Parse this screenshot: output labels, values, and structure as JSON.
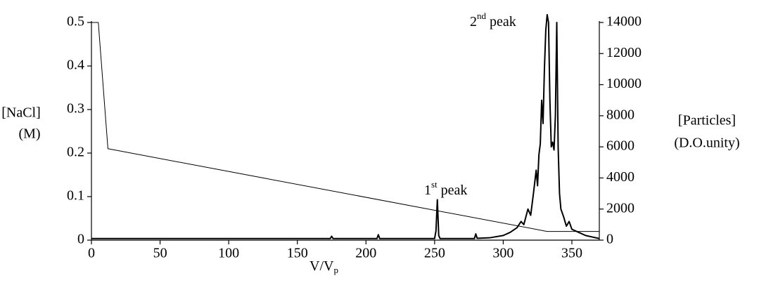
{
  "chart_data": {
    "type": "line",
    "x_label": {
      "main": "V/V",
      "subscript": "p"
    },
    "y_label": [
      "[NaCl]",
      "(M)"
    ],
    "y2_label": [
      "[Particles]",
      "(D.O.unity)"
    ],
    "annotations": [
      {
        "number": "1",
        "superscript": "st",
        "text": "peak"
      },
      {
        "number": "2",
        "superscript": "nd",
        "text": "peak"
      }
    ],
    "xlim": [
      0,
      370
    ],
    "xticks": [
      0,
      50,
      100,
      150,
      200,
      250,
      300,
      350
    ],
    "ylim": [
      0,
      0.5
    ],
    "yticks": [
      0,
      0.1,
      0.2,
      0.3,
      0.4,
      0.5
    ],
    "y2lim": [
      0,
      14000
    ],
    "y2ticks": [
      0,
      2000,
      4000,
      6000,
      8000,
      10000,
      12000,
      14000
    ],
    "series": [
      {
        "name": "[NaCl]",
        "color": "#000000",
        "axis": "y",
        "width": 1,
        "x": [
          0,
          5,
          12,
          332,
          370
        ],
        "values": [
          0.5,
          0.5,
          0.21,
          0.02,
          0.02
        ]
      },
      {
        "name": "[Particles]",
        "color": "#000000",
        "axis": "y2",
        "width": 2,
        "x": [
          0,
          50,
          100,
          150,
          174,
          175,
          176,
          200,
          208,
          209,
          210,
          230,
          250,
          251,
          252,
          253,
          254,
          270,
          279,
          280,
          281,
          290,
          300,
          305,
          310,
          313,
          315,
          318,
          320,
          322,
          324,
          325,
          326,
          327,
          328,
          329,
          330,
          331,
          332,
          333,
          334,
          335,
          336,
          337,
          338,
          339,
          340,
          341,
          342,
          344,
          346,
          348,
          350,
          355,
          360,
          365,
          370
        ],
        "values": [
          100,
          100,
          100,
          100,
          100,
          250,
          100,
          100,
          100,
          350,
          100,
          100,
          100,
          600,
          2600,
          300,
          100,
          100,
          100,
          400,
          120,
          150,
          300,
          500,
          800,
          1200,
          1000,
          2000,
          1600,
          3000,
          4500,
          3500,
          5500,
          6200,
          9000,
          7500,
          11000,
          13500,
          14500,
          14000,
          9000,
          6000,
          6300,
          5800,
          8000,
          14000,
          6000,
          3000,
          2000,
          1500,
          900,
          1200,
          700,
          500,
          300,
          200,
          100
        ]
      }
    ]
  }
}
